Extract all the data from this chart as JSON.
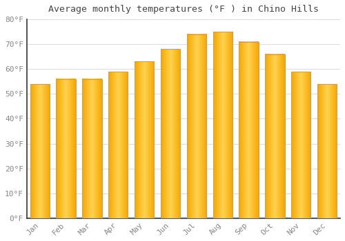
{
  "title": "Average monthly temperatures (°F ) in Chino Hills",
  "months": [
    "Jan",
    "Feb",
    "Mar",
    "Apr",
    "May",
    "Jun",
    "Jul",
    "Aug",
    "Sep",
    "Oct",
    "Nov",
    "Dec"
  ],
  "values": [
    54,
    56,
    56,
    59,
    63,
    68,
    74,
    75,
    71,
    66,
    59,
    54
  ],
  "bar_color_left": "#F5A800",
  "bar_color_center": "#FFD060",
  "bar_color_right": "#F5A800",
  "bar_edge_color": "#C8A060",
  "background_color": "#FFFFFF",
  "grid_color": "#DDDDDD",
  "tick_label_color": "#888888",
  "title_color": "#444444",
  "ylim": [
    0,
    80
  ],
  "yticks": [
    0,
    10,
    20,
    30,
    40,
    50,
    60,
    70,
    80
  ],
  "ytick_labels": [
    "0°F",
    "10°F",
    "20°F",
    "30°F",
    "40°F",
    "50°F",
    "60°F",
    "70°F",
    "80°F"
  ],
  "bar_width": 0.75,
  "left_spine_color": "#333333",
  "bottom_spine_color": "#333333"
}
